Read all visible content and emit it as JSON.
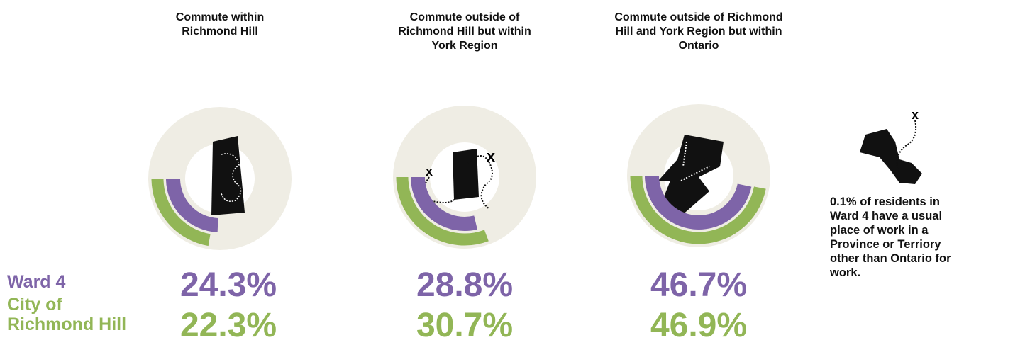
{
  "chart_data": {
    "type": "donut",
    "categories": [
      "Commute within Richmond Hill",
      "Commute outside of Richmond Hill but within York Region",
      "Commute outside of Richmond Hill and York Region but within Ontario"
    ],
    "series": [
      {
        "name": "Ward 4",
        "color": "#7e64a8",
        "values": [
          24.3,
          28.8,
          46.7
        ],
        "value_labels": [
          "24.3%",
          "28.8%",
          "46.7%"
        ]
      },
      {
        "name": "City of Richmond Hill",
        "color": "#92b656",
        "values": [
          22.3,
          30.7,
          46.9
        ],
        "value_labels": [
          "22.3%",
          "30.7%",
          "46.9%"
        ]
      }
    ],
    "track_color": "#efede4",
    "annotation": "0.1% of residents in Ward 4 have a usual place of work in a Province or Terriory other than Ontario for work."
  }
}
